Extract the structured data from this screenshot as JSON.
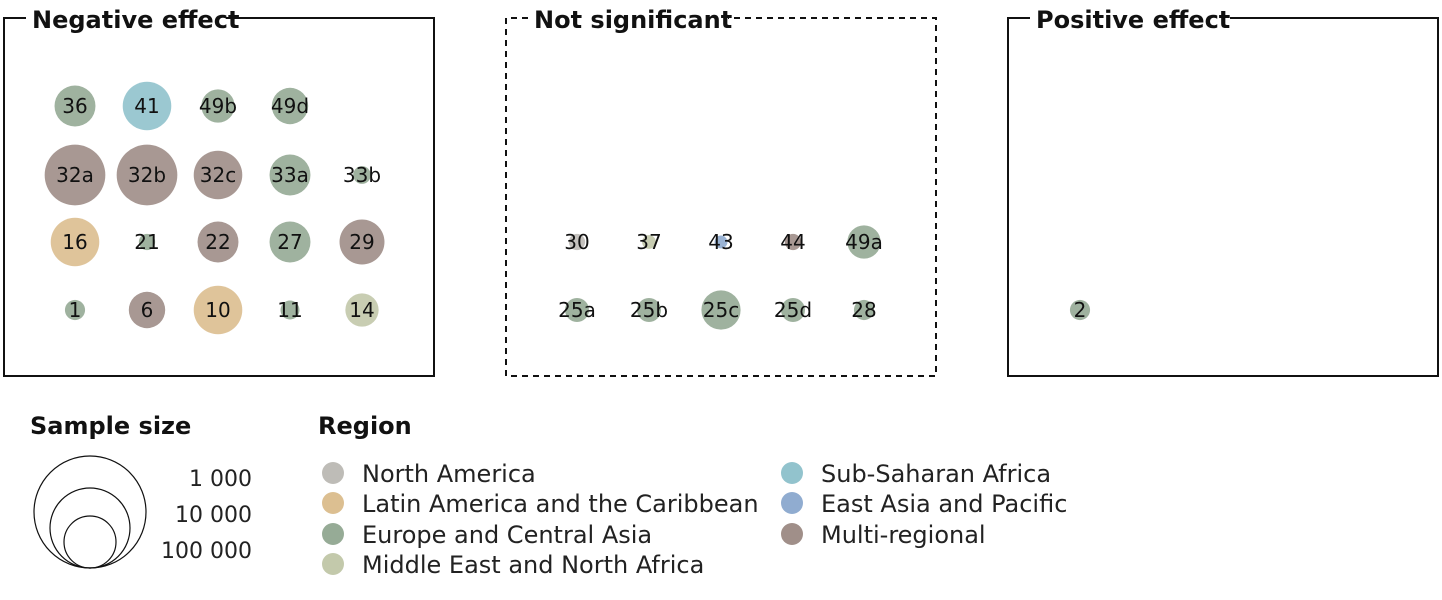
{
  "colors": {
    "north_america": "#b3b0aa",
    "latin_america": "#d6b47e",
    "europe_central_asia": "#849c84",
    "mena": "#b8bf9c",
    "ssa": "#7fb8c4",
    "eap": "#7d9ec8",
    "multi": "#8f7b74"
  },
  "chart_data": {
    "type": "bubble-grid",
    "panels": [
      {
        "id": "negative",
        "title": "Negative effect",
        "style": "solid",
        "rows": [
          [
            {
              "label": "36",
              "region": "europe_central_asia",
              "sample": 20000
            },
            {
              "label": "41",
              "region": "ssa",
              "sample": 30000
            },
            {
              "label": "49b",
              "region": "europe_central_asia",
              "sample": 12000
            },
            {
              "label": "49d",
              "region": "europe_central_asia",
              "sample": 15000
            }
          ],
          [
            {
              "label": "32a",
              "region": "multi",
              "sample": 50000
            },
            {
              "label": "32b",
              "region": "multi",
              "sample": 50000
            },
            {
              "label": "32c",
              "region": "multi",
              "sample": 30000
            },
            {
              "label": "33a",
              "region": "europe_central_asia",
              "sample": 20000
            },
            {
              "label": "33b",
              "region": "europe_central_asia",
              "sample": 2000
            }
          ],
          [
            {
              "label": "16",
              "region": "latin_america",
              "sample": 30000
            },
            {
              "label": "21",
              "region": "europe_central_asia",
              "sample": 1500
            },
            {
              "label": "22",
              "region": "multi",
              "sample": 20000
            },
            {
              "label": "27",
              "region": "europe_central_asia",
              "sample": 20000
            },
            {
              "label": "29",
              "region": "multi",
              "sample": 25000
            }
          ],
          [
            {
              "label": "1",
              "region": "europe_central_asia",
              "sample": 3000
            },
            {
              "label": "6",
              "region": "multi",
              "sample": 15000
            },
            {
              "label": "10",
              "region": "latin_america",
              "sample": 30000
            },
            {
              "label": "11",
              "region": "europe_central_asia",
              "sample": 2500
            },
            {
              "label": "14",
              "region": "mena",
              "sample": 12000
            }
          ]
        ]
      },
      {
        "id": "not_significant",
        "title": "Not significant",
        "style": "dashed",
        "rows": [
          [
            {
              "label": "30",
              "region": "north_america",
              "sample": 1500
            },
            {
              "label": "37",
              "region": "mena",
              "sample": 800
            },
            {
              "label": "43",
              "region": "eap",
              "sample": 600
            },
            {
              "label": "44",
              "region": "multi",
              "sample": 1500
            },
            {
              "label": "49a",
              "region": "europe_central_asia",
              "sample": 12000
            }
          ],
          [
            {
              "label": "25a",
              "region": "europe_central_asia",
              "sample": 5000
            },
            {
              "label": "25b",
              "region": "europe_central_asia",
              "sample": 5000
            },
            {
              "label": "25c",
              "region": "europe_central_asia",
              "sample": 18000
            },
            {
              "label": "25d",
              "region": "europe_central_asia",
              "sample": 5000
            },
            {
              "label": "28",
              "region": "europe_central_asia",
              "sample": 3000
            }
          ]
        ]
      },
      {
        "id": "positive",
        "title": "Positive effect",
        "style": "solid",
        "rows": [
          [
            {
              "label": "2",
              "region": "europe_central_asia",
              "sample": 3000
            }
          ]
        ]
      }
    ]
  },
  "legend": {
    "size_title": "Sample size",
    "sizes": [
      {
        "label": "1 000",
        "value": 1000
      },
      {
        "label": "10 000",
        "value": 10000
      },
      {
        "label": "100 000",
        "value": 100000
      }
    ],
    "region_title": "Region",
    "regions_col1": [
      {
        "label": "North America",
        "region": "north_america"
      },
      {
        "label": "Latin America and the Caribbean",
        "region": "latin_america"
      },
      {
        "label": "Europe and Central Asia",
        "region": "europe_central_asia"
      },
      {
        "label": "Middle East and North Africa",
        "region": "mena"
      }
    ],
    "regions_col2": [
      {
        "label": "Sub-Saharan Africa",
        "region": "ssa"
      },
      {
        "label": "East Asia and Pacific",
        "region": "eap"
      },
      {
        "label": "Multi-regional",
        "region": "multi"
      }
    ]
  }
}
